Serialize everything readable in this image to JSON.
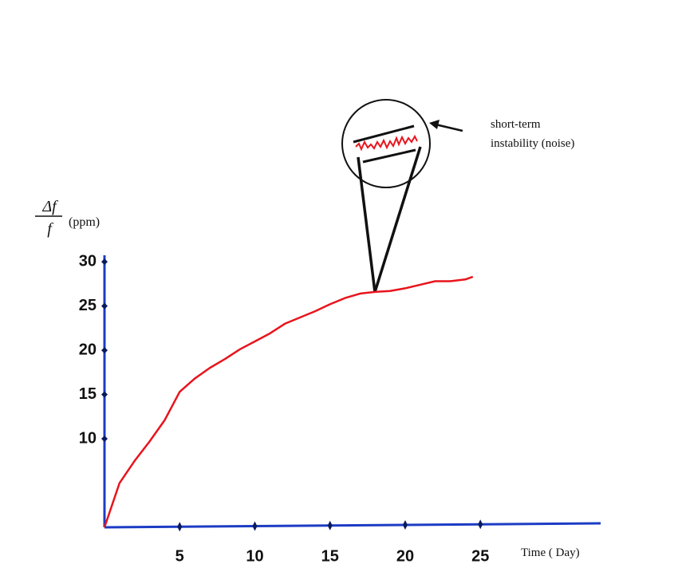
{
  "chart_data": {
    "type": "line",
    "y_label": {
      "numerator": "Δf",
      "denominator": "f",
      "unit": "(ppm)"
    },
    "x_label": "Time ( Day)",
    "annotation": [
      "short-term",
      "instability  (noise)"
    ],
    "x": [
      0,
      1,
      2,
      3,
      4,
      5,
      6,
      7,
      8,
      9,
      10,
      11,
      12,
      13,
      14,
      15,
      16,
      17,
      18,
      19,
      20,
      21,
      22,
      23,
      24,
      24.5
    ],
    "series": [
      {
        "color": "#e8141c",
        "values": [
          0,
          5.0,
          7.5,
          9.7,
          12.1,
          15.3,
          16.8,
          18.0,
          19.0,
          20.1,
          21.0,
          21.9,
          23.0,
          23.7,
          24.4,
          25.2,
          25.9,
          26.4,
          26.6,
          26.7,
          27.0,
          27.4,
          27.8,
          27.8,
          28.0,
          28.3
        ]
      }
    ],
    "xlim": [
      0,
      33
    ],
    "xticks": [
      5,
      10,
      15,
      20,
      25
    ],
    "ylim": [
      0,
      31
    ],
    "yticks": [
      10,
      15,
      20,
      25,
      30
    ],
    "axis_color": "#1c3cc4",
    "grid": false
  }
}
